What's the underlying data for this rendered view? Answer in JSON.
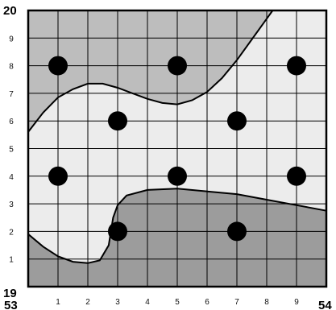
{
  "corner_labels": {
    "top_left": "20",
    "bottom_left": "19",
    "bottom_left_x": "53",
    "bottom_right_x": "54"
  },
  "x_ticks": [
    "1",
    "2",
    "3",
    "4",
    "5",
    "6",
    "7",
    "8",
    "9"
  ],
  "y_ticks": [
    "1",
    "2",
    "3",
    "4",
    "5",
    "6",
    "7",
    "8",
    "9"
  ],
  "colors": {
    "top_region": "#bdbdbd",
    "middle_region": "#ececec",
    "bottom_region": "#9c9c9c",
    "dot": "#000000",
    "grid": "#000000"
  },
  "dots": [
    {
      "x": 1,
      "y": 8
    },
    {
      "x": 5,
      "y": 8
    },
    {
      "x": 9,
      "y": 8
    },
    {
      "x": 3,
      "y": 6
    },
    {
      "x": 7,
      "y": 6
    },
    {
      "x": 1,
      "y": 4
    },
    {
      "x": 5,
      "y": 4
    },
    {
      "x": 9,
      "y": 4
    },
    {
      "x": 3,
      "y": 2
    },
    {
      "x": 7,
      "y": 2
    }
  ],
  "upper_boundary": [
    [
      0,
      5.6
    ],
    [
      0.5,
      6.3
    ],
    [
      1,
      6.85
    ],
    [
      1.5,
      7.15
    ],
    [
      2,
      7.35
    ],
    [
      2.5,
      7.35
    ],
    [
      3,
      7.2
    ],
    [
      3.5,
      7.0
    ],
    [
      4,
      6.8
    ],
    [
      4.5,
      6.65
    ],
    [
      5,
      6.6
    ],
    [
      5.5,
      6.75
    ],
    [
      6,
      7.05
    ],
    [
      6.5,
      7.55
    ],
    [
      7,
      8.2
    ],
    [
      7.5,
      8.95
    ],
    [
      8,
      9.7
    ],
    [
      8.2,
      10
    ]
  ],
  "lower_boundary": [
    [
      0,
      1.9
    ],
    [
      0.5,
      1.45
    ],
    [
      1,
      1.1
    ],
    [
      1.5,
      0.9
    ],
    [
      2,
      0.85
    ],
    [
      2.4,
      0.95
    ],
    [
      2.7,
      1.5
    ],
    [
      2.85,
      2.5
    ],
    [
      3,
      2.95
    ],
    [
      3.3,
      3.3
    ],
    [
      4,
      3.5
    ],
    [
      5,
      3.55
    ],
    [
      6,
      3.45
    ],
    [
      7,
      3.35
    ],
    [
      8,
      3.15
    ],
    [
      9,
      2.95
    ],
    [
      10,
      2.75
    ]
  ]
}
